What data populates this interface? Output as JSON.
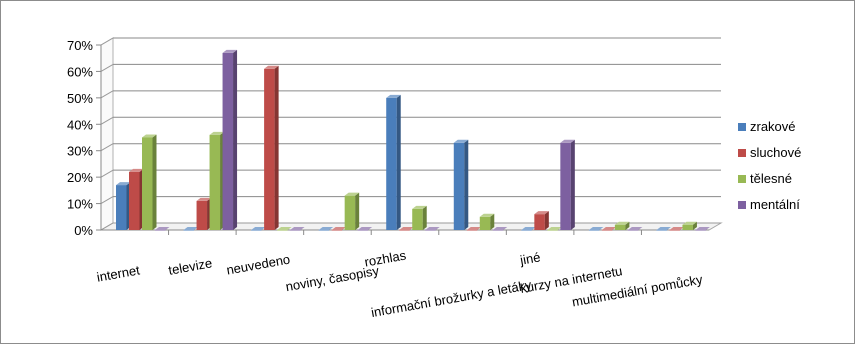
{
  "chart_data": {
    "type": "bar",
    "three_d": true,
    "categories": [
      "internet",
      "televize",
      "neuvedeno",
      "noviny, časopisy",
      "rozhlas",
      "informační brožurky a letáky",
      "jiné",
      "kurzy na internetu",
      "multimediální pomůcky"
    ],
    "series": [
      {
        "name": "zrakové",
        "color": "#4a7ebb",
        "values": [
          17,
          0,
          0,
          0,
          50,
          33,
          0,
          0,
          0
        ]
      },
      {
        "name": "sluchové",
        "color": "#be4b48",
        "values": [
          22,
          11,
          61,
          0,
          0,
          0,
          6,
          0,
          0
        ]
      },
      {
        "name": "tělesné",
        "color": "#98b954",
        "values": [
          35,
          36,
          0,
          13,
          8,
          5,
          0,
          2,
          2
        ]
      },
      {
        "name": "mentální",
        "color": "#7d60a0",
        "values": [
          0,
          67,
          0,
          0,
          0,
          0,
          33,
          0,
          0
        ]
      }
    ],
    "yticks": [
      "0%",
      "10%",
      "20%",
      "30%",
      "40%",
      "50%",
      "60%",
      "70%"
    ],
    "ylim": [
      0,
      70
    ],
    "grid": true,
    "legend_position": "right",
    "title": "",
    "xlabel": "",
    "ylabel": ""
  }
}
